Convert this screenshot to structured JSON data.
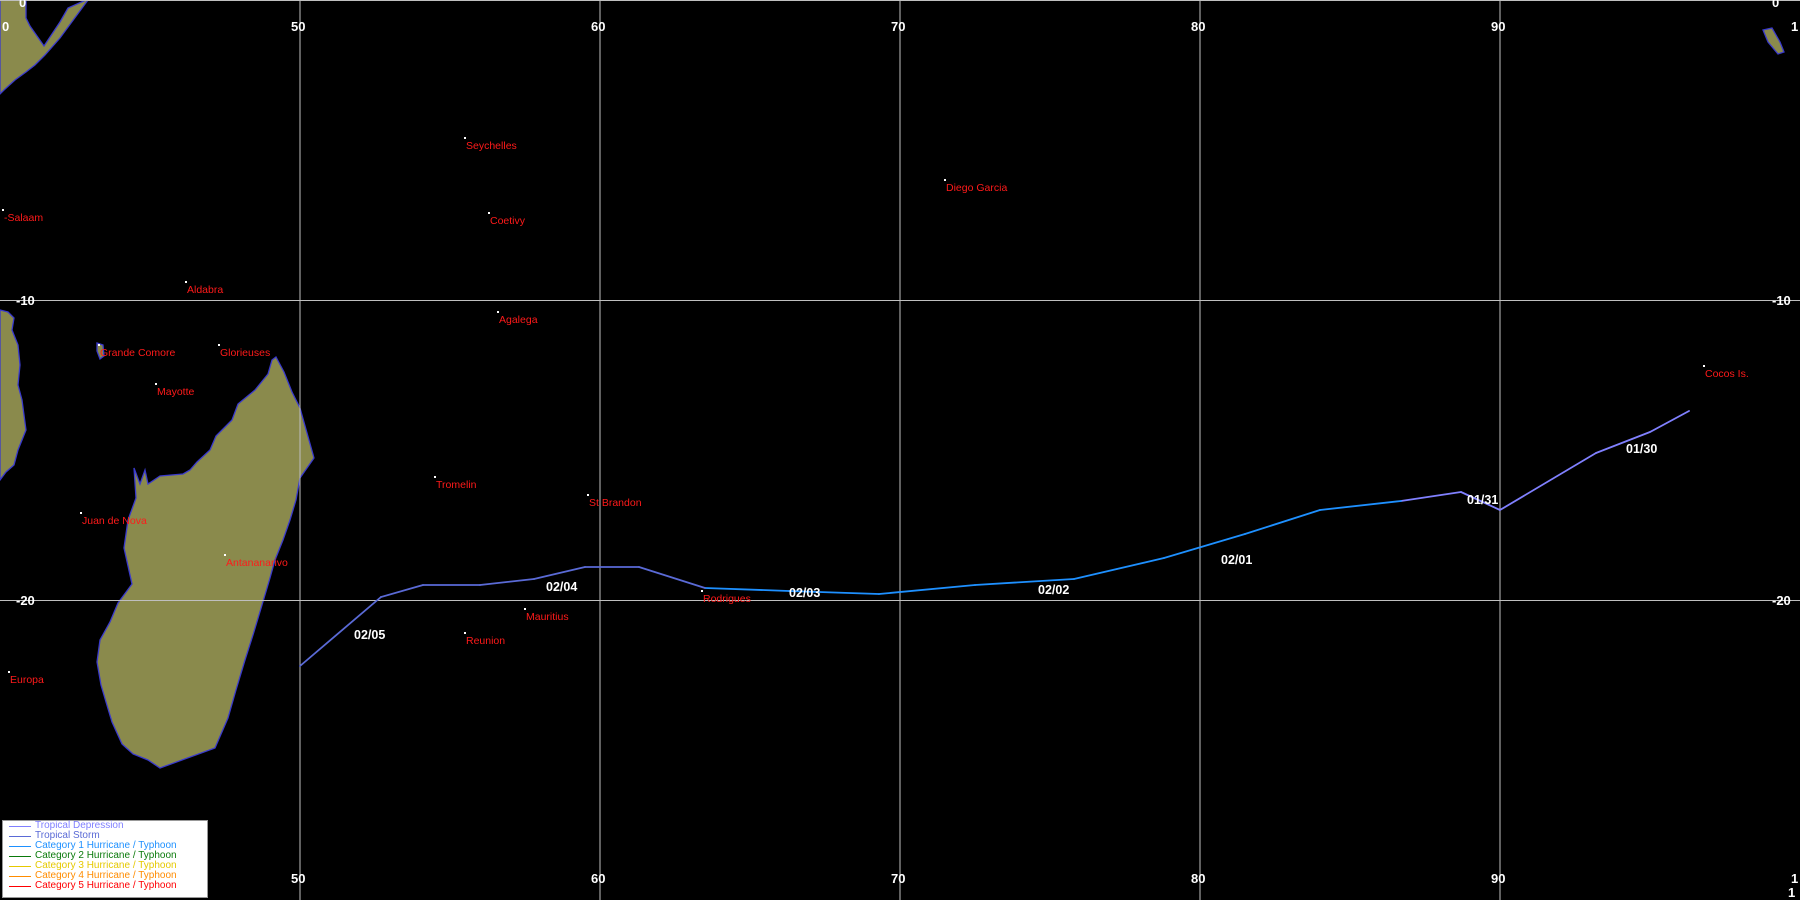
{
  "colors": {
    "background": "#000000",
    "land": "#8a8a4c",
    "coast": "#3a3acc",
    "grid": "#bfbfbf",
    "place_label": "#ff1a1a",
    "place_dot": "#ffffff",
    "date_label": "#ffffff"
  },
  "axes": {
    "lon_ticks_top": [
      "0",
      "50",
      "60",
      "70",
      "80",
      "90",
      "1"
    ],
    "lon_ticks_bottom": [
      "50",
      "60",
      "70",
      "80",
      "90",
      "1"
    ],
    "lat_ticks_left": [
      "0",
      "-10",
      "-20"
    ],
    "lat_ticks_right": [
      "0",
      "-10",
      "-20",
      "1"
    ]
  },
  "places": [
    {
      "name": "Seychelles",
      "lon": 55.5,
      "lat": -4.6
    },
    {
      "name": "Diego Garcia",
      "lon": 71.5,
      "lat": -6.0
    },
    {
      "name": "-Salaam",
      "lon": 40.1,
      "lat": -7.0
    },
    {
      "name": "Coetivy",
      "lon": 56.3,
      "lat": -7.1
    },
    {
      "name": "Aldabra",
      "lon": 46.2,
      "lat": -9.4
    },
    {
      "name": "Agalega",
      "lon": 56.6,
      "lat": -10.4
    },
    {
      "name": "Grande Comore",
      "lon": 43.3,
      "lat": -11.5
    },
    {
      "name": "Glorieuses",
      "lon": 47.3,
      "lat": -11.5
    },
    {
      "name": "Mayotte",
      "lon": 45.2,
      "lat": -12.8
    },
    {
      "name": "Cocos Is.",
      "lon": 96.8,
      "lat": -12.2
    },
    {
      "name": "Tromelin",
      "lon": 54.5,
      "lat": -15.9
    },
    {
      "name": "St Brandon",
      "lon": 59.6,
      "lat": -16.5
    },
    {
      "name": "Juan de Nova",
      "lon": 42.7,
      "lat": -17.1
    },
    {
      "name": "Antananarivo",
      "lon": 47.5,
      "lat": -18.5
    },
    {
      "name": "Rodrigues",
      "lon": 63.4,
      "lat": -19.7
    },
    {
      "name": "Mauritius",
      "lon": 57.5,
      "lat": -20.3
    },
    {
      "name": "Reunion",
      "lon": 55.5,
      "lat": -21.1
    },
    {
      "name": "Europa",
      "lon": 40.3,
      "lat": -22.4
    }
  ],
  "track": [
    {
      "lon": 96.3,
      "lat": -13.7,
      "category": "Tropical Depression"
    },
    {
      "lon": 95.0,
      "lat": -14.4,
      "category": "Tropical Depression"
    },
    {
      "lon": 93.2,
      "lat": -15.1,
      "category": "Tropical Depression"
    },
    {
      "lon": 90.0,
      "lat": -17.0,
      "category": "Tropical Depression"
    },
    {
      "lon": 88.7,
      "lat": -16.4,
      "category": "Tropical Depression"
    },
    {
      "lon": 86.7,
      "lat": -16.7,
      "category": "Category 1 Hurricane / Typhoon"
    },
    {
      "lon": 84.0,
      "lat": -17.0,
      "category": "Category 1 Hurricane / Typhoon"
    },
    {
      "lon": 81.5,
      "lat": -17.8,
      "category": "Category 1 Hurricane / Typhoon"
    },
    {
      "lon": 78.8,
      "lat": -18.6,
      "category": "Category 1 Hurricane / Typhoon"
    },
    {
      "lon": 75.8,
      "lat": -19.3,
      "category": "Category 1 Hurricane / Typhoon"
    },
    {
      "lon": 72.5,
      "lat": -19.5,
      "category": "Category 1 Hurricane / Typhoon"
    },
    {
      "lon": 69.3,
      "lat": -19.8,
      "category": "Category 1 Hurricane / Typhoon"
    },
    {
      "lon": 66.3,
      "lat": -19.7,
      "category": "Category 1 Hurricane / Typhoon"
    },
    {
      "lon": 63.5,
      "lat": -19.6,
      "category": "Tropical Storm"
    },
    {
      "lon": 61.3,
      "lat": -18.9,
      "category": "Tropical Storm"
    },
    {
      "lon": 59.5,
      "lat": -18.9,
      "category": "Tropical Storm"
    },
    {
      "lon": 57.8,
      "lat": -19.3,
      "category": "Tropical Storm"
    },
    {
      "lon": 56.0,
      "lat": -19.5,
      "category": "Tropical Storm"
    },
    {
      "lon": 54.1,
      "lat": -19.5,
      "category": "Tropical Storm"
    },
    {
      "lon": 52.7,
      "lat": -19.9,
      "category": "Tropical Storm"
    },
    {
      "lon": 50.0,
      "lat": -22.2,
      "category": "Tropical Depression"
    }
  ],
  "date_labels": [
    {
      "text": "01/30",
      "lon": 94.2,
      "lat": -15.1
    },
    {
      "text": "01/31",
      "lon": 88.9,
      "lat": -16.8
    },
    {
      "text": "02/01",
      "lon": 80.7,
      "lat": -18.8
    },
    {
      "text": "02/02",
      "lon": 74.6,
      "lat": -19.8
    },
    {
      "text": "02/03",
      "lon": 66.3,
      "lat": -19.9
    },
    {
      "text": "02/04",
      "lon": 58.2,
      "lat": -19.7
    },
    {
      "text": "02/05",
      "lon": 51.8,
      "lat": -21.3
    }
  ],
  "legend": {
    "items": [
      {
        "label": "Tropical Depression",
        "color": "#8080ff"
      },
      {
        "label": "Tropical Storm",
        "color": "#5a6ad6"
      },
      {
        "label": "Category 1 Hurricane / Typhoon",
        "color": "#1e90ff"
      },
      {
        "label": "Category 2 Hurricane / Typhoon",
        "color": "#0a7a0a"
      },
      {
        "label": "Category 3 Hurricane / Typhoon",
        "color": "#e6c800"
      },
      {
        "label": "Category 4 Hurricane / Typhoon",
        "color": "#ff8c00"
      },
      {
        "label": "Category 5 Hurricane / Typhoon",
        "color": "#ff0000"
      }
    ]
  }
}
